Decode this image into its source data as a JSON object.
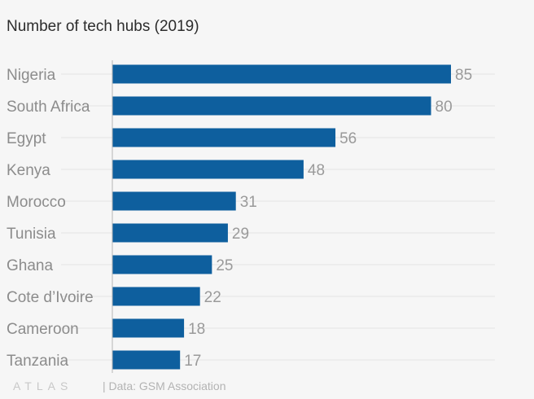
{
  "title": "Number of tech hubs (2019)",
  "colors": {
    "bar": "#0e5f9e",
    "category_label": "#8c8c8c",
    "value_label": "#9a9a9a",
    "gridline": "#e4e4e4",
    "axis": "#b5b5b5",
    "background": "#f6f6f6"
  },
  "chart_data": {
    "type": "bar",
    "orientation": "horizontal",
    "title": "Number of tech hubs (2019)",
    "categories": [
      "Nigeria",
      "South Africa",
      "Egypt",
      "Kenya",
      "Morocco",
      "Tunisia",
      "Ghana",
      "Cote d’Ivoire",
      "Cameroon",
      "Tanzania"
    ],
    "values": [
      85,
      80,
      56,
      48,
      31,
      29,
      25,
      22,
      18,
      17
    ],
    "xlim": [
      0,
      85
    ],
    "grid": true,
    "data_labels": true
  },
  "footer": {
    "logo": "ATLAS",
    "source": "| Data: GSM Association"
  }
}
